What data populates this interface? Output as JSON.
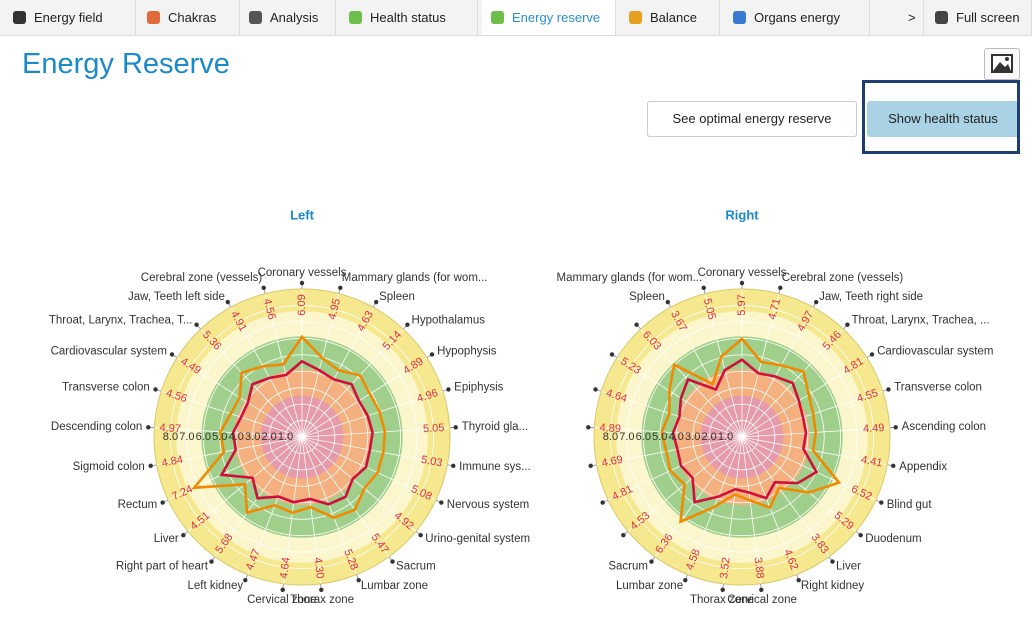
{
  "tabs": [
    "Energy field",
    "Chakras",
    "Analysis",
    "Health status",
    "Energy reserve",
    "Balance",
    "Organs energy",
    ">",
    "Full screen"
  ],
  "title": "Energy Reserve",
  "buttons": [
    "See optimal energy reserve",
    "Show health status"
  ],
  "chart_data": [
    {
      "type": "radar",
      "title": "Left",
      "categories": [
        "Coronary vessels",
        "Mammary glands (for wom...",
        "Spleen",
        "Hypothalamus",
        "Hypophysis",
        "Epiphysis",
        "Thyroid gla...",
        "Immune sys...",
        "Nervous system",
        "Urino-genital system",
        "Sacrum",
        "Lumbar zone",
        "Thorax zone",
        "Cervical zone",
        "Left kidney",
        "Right part of heart",
        "Liver",
        "Rectum",
        "Sigmoid colon",
        "Descending colon",
        "Transverse colon",
        "Cardiovascular system",
        "Throat, Larynx, Trachea, T...",
        "Jaw, Teeth left side",
        "Cerebral zone (vessels)"
      ],
      "series": [
        {
          "color": "#f08a00",
          "values": [
            6.09,
            4.95,
            4.63,
            5.14,
            4.89,
            4.96,
            5.05,
            5.03,
            5.08,
            4.92,
            5.47,
            5.28,
            4.3,
            4.64,
            4.47,
            5.68,
            4.51,
            7.24,
            4.84,
            4.97,
            4.56,
            4.49,
            5.36,
            4.91,
            4.56
          ],
          "value_labels": [
            "6.09",
            "4.95",
            "4.63",
            "5.14",
            "4.89",
            "4.96",
            "5.05",
            "5.03",
            "5.08",
            "4.92",
            "5.47",
            "5.28",
            "4.30",
            "4.64",
            "4.47",
            "5.68",
            "4.51",
            "7.24",
            "4.84",
            "4.97",
            "4.56",
            "4.49",
            "5.36",
            "4.91",
            "4.56"
          ]
        },
        {
          "color": "#d0103a",
          "values": [
            4.6,
            4.2,
            4.0,
            4.4,
            4.1,
            4.2,
            4.3,
            4.2,
            4.3,
            4.0,
            4.5,
            4.4,
            3.8,
            4.0,
            3.9,
            4.6,
            3.9,
            5.4,
            4.1,
            4.2,
            3.9,
            3.9,
            4.4,
            4.1,
            3.9
          ]
        }
      ],
      "rlim": [
        0,
        9
      ],
      "rticks": [
        {
          "value": 8,
          "label": "8.0"
        },
        {
          "value": 7,
          "label": "7.0"
        },
        {
          "value": 6,
          "label": "6.0"
        },
        {
          "value": 5,
          "label": "5.0"
        },
        {
          "value": 4,
          "label": "4.0"
        },
        {
          "value": 3,
          "label": "3.0"
        },
        {
          "value": 2,
          "label": "2.0"
        },
        {
          "value": 1,
          "label": "1.0"
        }
      ]
    },
    {
      "type": "radar",
      "title": "Right",
      "categories": [
        "Coronary vessels",
        "Cerebral zone (vessels)",
        "Jaw, Teeth right side",
        "Throat, Larynx, Trachea, ...",
        "Cardiovascular system",
        "Transverse colon",
        "Ascending colon",
        "Appendix",
        "Blind gut",
        "Duodenum",
        "Liver",
        "Right kidney",
        "Cervical zone",
        "Thorax zone",
        "Lumbar zone",
        "Sacrum",
        null,
        null,
        null,
        null,
        null,
        null,
        null,
        "Spleen",
        "Mammary glands (for wom..."
      ],
      "series": [
        {
          "color": "#f08a00",
          "values": [
            5.97,
            4.71,
            4.97,
            5.46,
            4.81,
            4.55,
            4.49,
            4.41,
            6.52,
            5.29,
            3.83,
            4.62,
            3.88,
            3.52,
            4.58,
            6.36,
            4.53,
            4.81,
            4.69,
            4.89,
            4.64,
            5.23,
            6.03,
            3.67,
            5.05
          ],
          "value_labels": [
            "5.97",
            "4.71",
            "4.97",
            "5.46",
            "4.81",
            "4.55",
            "4.49",
            "4.41",
            "6.52",
            "5.29",
            "3.83",
            "4.62",
            "3.88",
            "3.52",
            "4.58",
            "6.36",
            "4.53",
            "4.81",
            "4.69",
            "4.89",
            "4.64",
            "5.23",
            "6.03",
            "3.67",
            "5.05"
          ]
        },
        {
          "color": "#d0103a",
          "values": [
            4.7,
            4.0,
            4.2,
            4.5,
            4.1,
            3.9,
            3.9,
            3.8,
            5.0,
            4.4,
            3.4,
            4.0,
            3.4,
            3.2,
            3.9,
            4.9,
            3.9,
            4.1,
            4.0,
            4.2,
            4.0,
            4.4,
            4.8,
            3.3,
            4.2
          ]
        }
      ],
      "rlim": [
        0,
        9
      ],
      "rticks": [
        {
          "value": 8,
          "label": "8.0"
        },
        {
          "value": 7,
          "label": "7.0"
        },
        {
          "value": 6,
          "label": "6.0"
        },
        {
          "value": 5,
          "label": "5.0"
        },
        {
          "value": 4,
          "label": "4.0"
        },
        {
          "value": 3,
          "label": "3.0"
        },
        {
          "value": 2,
          "label": "2.0"
        },
        {
          "value": 1,
          "label": "1.0"
        }
      ]
    }
  ]
}
